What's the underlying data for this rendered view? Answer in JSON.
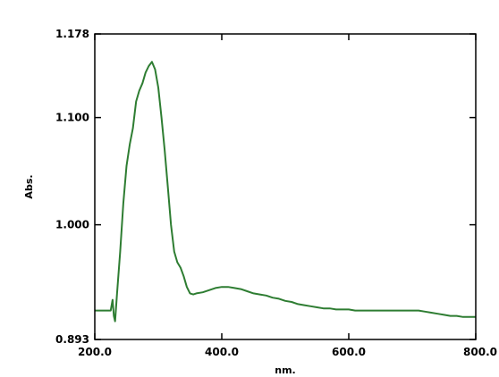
{
  "chart_data": {
    "type": "line",
    "title": "",
    "xlabel": "nm.",
    "ylabel": "Abs.",
    "xlim": [
      200,
      800
    ],
    "ylim": [
      0.893,
      1.178
    ],
    "x_ticks": [
      "200.0",
      "400.0",
      "600.0",
      "800.0"
    ],
    "y_ticks": [
      "0.893",
      "1.000",
      "1.100",
      "1.178"
    ],
    "grid": false,
    "series": [
      {
        "color": "#2e7d32",
        "x": [
          200,
          210,
          220,
          225,
          228,
          230,
          232,
          235,
          240,
          245,
          250,
          255,
          260,
          265,
          270,
          275,
          280,
          285,
          290,
          295,
          300,
          305,
          310,
          315,
          320,
          325,
          330,
          335,
          340,
          345,
          350,
          355,
          360,
          370,
          380,
          390,
          400,
          410,
          420,
          430,
          440,
          450,
          460,
          470,
          480,
          490,
          500,
          510,
          520,
          530,
          540,
          550,
          560,
          570,
          580,
          590,
          600,
          610,
          620,
          630,
          640,
          650,
          660,
          670,
          680,
          690,
          700,
          710,
          720,
          730,
          740,
          750,
          760,
          770,
          780,
          790,
          800
        ],
        "y": [
          0.92,
          0.92,
          0.92,
          0.92,
          0.93,
          0.915,
          0.91,
          0.935,
          0.975,
          1.02,
          1.055,
          1.075,
          1.09,
          1.115,
          1.125,
          1.132,
          1.142,
          1.148,
          1.152,
          1.145,
          1.128,
          1.1,
          1.07,
          1.035,
          1.0,
          0.975,
          0.965,
          0.96,
          0.952,
          0.942,
          0.936,
          0.935,
          0.936,
          0.937,
          0.939,
          0.941,
          0.942,
          0.942,
          0.941,
          0.94,
          0.938,
          0.936,
          0.935,
          0.934,
          0.932,
          0.931,
          0.929,
          0.928,
          0.926,
          0.925,
          0.924,
          0.923,
          0.922,
          0.922,
          0.921,
          0.921,
          0.921,
          0.92,
          0.92,
          0.92,
          0.92,
          0.92,
          0.92,
          0.92,
          0.92,
          0.92,
          0.92,
          0.92,
          0.919,
          0.918,
          0.917,
          0.916,
          0.915,
          0.915,
          0.914,
          0.914,
          0.914
        ]
      }
    ]
  }
}
